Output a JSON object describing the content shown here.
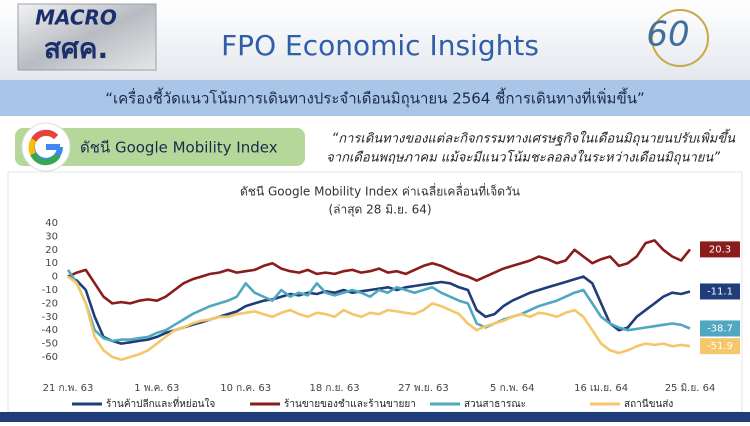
{
  "header": {
    "logo_left_line1": "MACRO",
    "logo_left_line2": "สศค.",
    "title": "FPO Economic Insights",
    "logo_right": "60"
  },
  "headline": "“เครื่องชี้วัดแนวโน้มการเดินทางประจำเดือนมิถุนายน 2564 ชี้การเดินทางที่เพิ่มขึ้น”",
  "section_label": "ดัชนี Google Mobility Index",
  "quote_lines": [
    "“การเดินทางของแต่ละกิจกรรมทางเศรษฐกิจในเดือนมิถุนายนปรับเพิ่มขึ้น",
    "จากเดือนพฤษภาคม แม้จะมีแนวโน้มชะลอลงในระหว่างเดือนมิถุนายน”"
  ],
  "chart_data": {
    "type": "line",
    "title": "ดัชนี Google Mobility Index ค่าเฉลี่ยเคลื่อนที่เจ็ดวัน",
    "subtitle": "(ล่าสุด 28 มิ.ย. 64)",
    "categories": [
      "21 ก.พ. 63",
      null,
      null,
      null,
      null,
      null,
      null,
      null,
      null,
      null,
      "1 พ.ค. 63",
      null,
      null,
      null,
      null,
      null,
      null,
      null,
      null,
      null,
      "10 ก.ค. 63",
      null,
      null,
      null,
      null,
      null,
      null,
      null,
      null,
      null,
      "18 ก.ย. 63",
      null,
      null,
      null,
      null,
      null,
      null,
      null,
      null,
      null,
      "27 พ.ย. 63",
      null,
      null,
      null,
      null,
      null,
      null,
      null,
      null,
      null,
      "5 ก.พ. 64",
      null,
      null,
      null,
      null,
      null,
      null,
      null,
      null,
      null,
      "16 เม.ย. 64",
      null,
      null,
      null,
      null,
      null,
      null,
      null,
      null,
      null,
      "25 มิ.ย. 64"
    ],
    "series": [
      {
        "name": "ร้านค้าปลีกและที่หย่อนใจ",
        "color": "#1f3d7a",
        "values": [
          0,
          -3,
          -10,
          -30,
          -45,
          -48,
          -50,
          -49,
          -48,
          -47,
          -45,
          -42,
          -40,
          -38,
          -36,
          -34,
          -32,
          -30,
          -28,
          -26,
          -22,
          -20,
          -18,
          -17,
          -15,
          -13,
          -14,
          -12,
          -13,
          -11,
          -12,
          -10,
          -12,
          -11,
          -10,
          -9,
          -8,
          -10,
          -8,
          -7,
          -6,
          -5,
          -4,
          -5,
          -8,
          -10,
          -25,
          -30,
          -28,
          -22,
          -18,
          -15,
          -12,
          -10,
          -8,
          -6,
          -4,
          -2,
          0,
          -5,
          -20,
          -35,
          -40,
          -38,
          -30,
          -25,
          -20,
          -15,
          -12,
          -13,
          -11.1
        ]
      },
      {
        "name": "ร้านขายของชำและร้านขายยา",
        "color": "#8b1c1c",
        "values": [
          0,
          3,
          5,
          -5,
          -15,
          -20,
          -19,
          -20,
          -18,
          -17,
          -18,
          -15,
          -10,
          -5,
          -2,
          0,
          2,
          3,
          5,
          3,
          4,
          5,
          8,
          10,
          6,
          4,
          3,
          5,
          2,
          3,
          2,
          4,
          5,
          3,
          4,
          6,
          3,
          4,
          2,
          5,
          8,
          10,
          8,
          5,
          2,
          0,
          -3,
          0,
          3,
          6,
          8,
          10,
          12,
          15,
          13,
          10,
          12,
          20,
          15,
          10,
          13,
          15,
          8,
          10,
          15,
          25,
          27,
          20,
          15,
          12,
          20.3
        ]
      },
      {
        "name": "สวนสาธารณะ",
        "color": "#4fa8c0",
        "values": [
          5,
          -5,
          -20,
          -40,
          -46,
          -48,
          -47,
          -47,
          -46,
          -45,
          -42,
          -40,
          -36,
          -32,
          -28,
          -25,
          -22,
          -20,
          -18,
          -15,
          -5,
          -12,
          -15,
          -18,
          -10,
          -15,
          -12,
          -14,
          -5,
          -12,
          -14,
          -12,
          -10,
          -12,
          -15,
          -10,
          -12,
          -8,
          -10,
          -12,
          -10,
          -8,
          -12,
          -15,
          -18,
          -20,
          -35,
          -38,
          -35,
          -32,
          -30,
          -28,
          -25,
          -22,
          -20,
          -18,
          -15,
          -12,
          -10,
          -20,
          -30,
          -35,
          -38,
          -40,
          -39,
          -38,
          -37,
          -36,
          -35,
          -36,
          -38.7
        ]
      },
      {
        "name": "สถานีขนส่ง",
        "color": "#f5c66a",
        "values": [
          0,
          -5,
          -20,
          -45,
          -55,
          -60,
          -62,
          -60,
          -58,
          -55,
          -50,
          -45,
          -40,
          -38,
          -35,
          -33,
          -32,
          -30,
          -30,
          -28,
          -27,
          -26,
          -28,
          -30,
          -27,
          -25,
          -28,
          -30,
          -27,
          -28,
          -30,
          -25,
          -28,
          -30,
          -27,
          -28,
          -25,
          -26,
          -27,
          -28,
          -25,
          -20,
          -22,
          -25,
          -28,
          -35,
          -40,
          -37,
          -35,
          -33,
          -30,
          -28,
          -30,
          -27,
          -28,
          -30,
          -27,
          -25,
          -30,
          -40,
          -50,
          -55,
          -57,
          -55,
          -52,
          -50,
          -51,
          -50,
          -52,
          -51,
          -51.9
        ]
      }
    ],
    "ylim": [
      -60,
      40
    ],
    "yticks": [
      -60,
      -50,
      -40,
      -30,
      -20,
      -10,
      0,
      10,
      20,
      30,
      40
    ],
    "grid": false
  }
}
